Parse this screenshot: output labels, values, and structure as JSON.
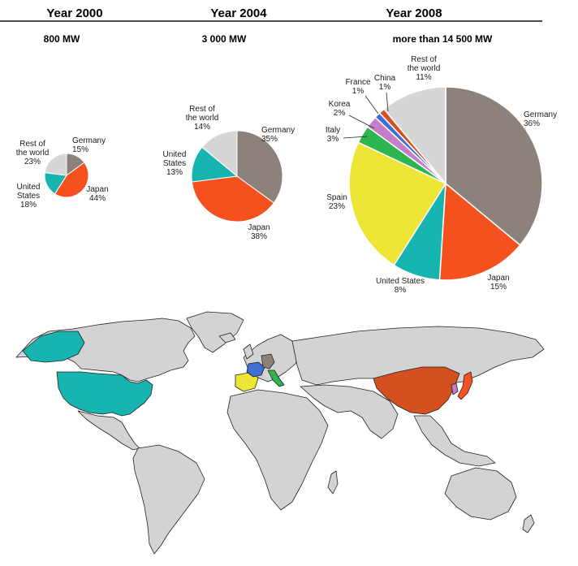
{
  "colors": {
    "Germany": "#8c817b",
    "Japan": "#f4511e",
    "United States": "#17b4b0",
    "Rest of the world": "#d6d6d6",
    "Spain": "#eee637",
    "Italy": "#2db54f",
    "Korea": "#c47dc9",
    "France": "#3f6fd0",
    "China": "#d4501e",
    "land": "#d3d3d3"
  },
  "chart_data": [
    {
      "type": "pie",
      "title": "Year 2000",
      "subtitle": "800 MW",
      "categories": [
        "Germany",
        "Japan",
        "United States",
        "Rest of the world"
      ],
      "values": [
        15,
        44,
        18,
        23
      ],
      "labels": [
        {
          "lines": [
            "Germany",
            "15%"
          ]
        },
        {
          "lines": [
            "Japan",
            "44%"
          ]
        },
        {
          "lines": [
            "United",
            "States",
            "18%"
          ]
        },
        {
          "lines": [
            "Rest of",
            "the world",
            "23%"
          ]
        }
      ]
    },
    {
      "type": "pie",
      "title": "Year 2004",
      "subtitle": "3 000 MW",
      "categories": [
        "Germany",
        "Japan",
        "United States",
        "Rest of the world"
      ],
      "values": [
        35,
        38,
        13,
        14
      ],
      "labels": [
        {
          "lines": [
            "Germany",
            "35%"
          ]
        },
        {
          "lines": [
            "Japan",
            "38%"
          ]
        },
        {
          "lines": [
            "United",
            "States",
            "13%"
          ]
        },
        {
          "lines": [
            "Rest of",
            "the world",
            "14%"
          ]
        }
      ]
    },
    {
      "type": "pie",
      "title": "Year 2008",
      "subtitle": "more than 14 500 MW",
      "categories": [
        "Germany",
        "Japan",
        "United States",
        "Spain",
        "Italy",
        "Korea",
        "France",
        "China",
        "Rest of the world"
      ],
      "values": [
        36,
        15,
        8,
        23,
        3,
        2,
        1,
        1,
        11
      ],
      "labels": [
        {
          "lines": [
            "Germany",
            "36%"
          ]
        },
        {
          "lines": [
            "Japan",
            "15%"
          ]
        },
        {
          "lines": [
            "United States",
            "8%"
          ]
        },
        {
          "lines": [
            "Spain",
            "23%"
          ]
        },
        {
          "lines": [
            "Italy",
            "3%"
          ]
        },
        {
          "lines": [
            "Korea",
            "2%"
          ]
        },
        {
          "lines": [
            "France",
            "1%"
          ]
        },
        {
          "lines": [
            "China",
            "1%"
          ]
        },
        {
          "lines": [
            "Rest of",
            "the world",
            "11%"
          ]
        }
      ]
    }
  ],
  "map": {
    "highlighted": [
      "United States",
      "Spain",
      "France",
      "Germany",
      "Italy",
      "China",
      "Korea",
      "Japan"
    ]
  }
}
